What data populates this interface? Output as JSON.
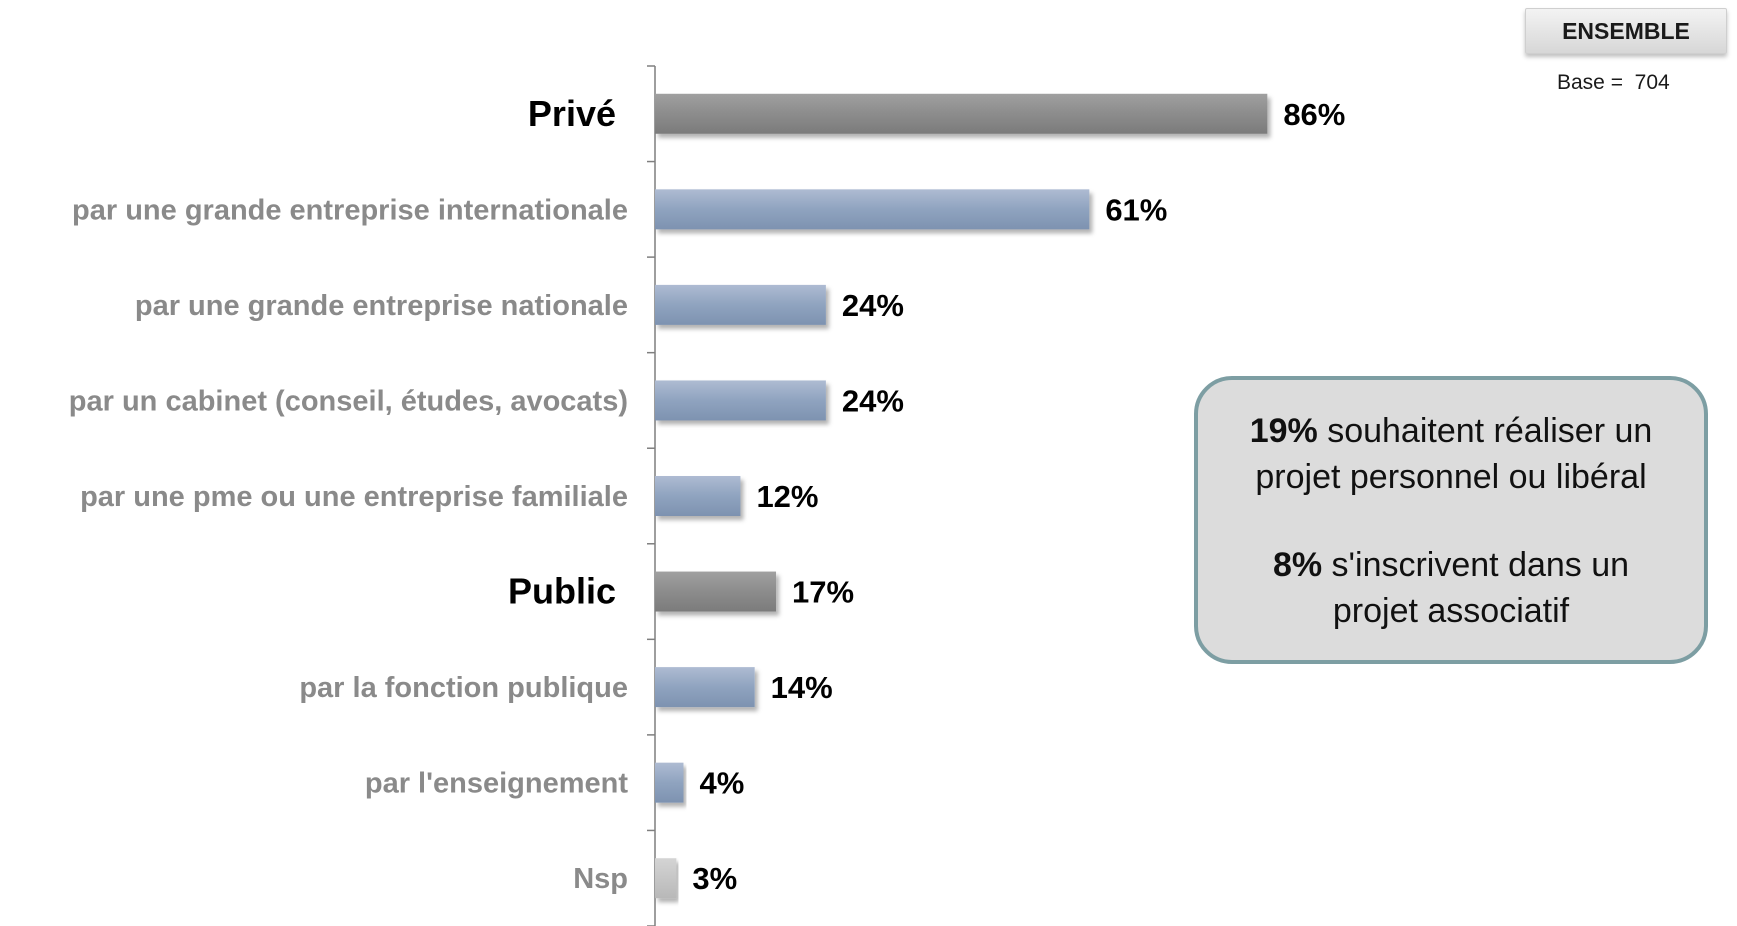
{
  "ensemble_label": "ENSEMBLE",
  "base": {
    "label": "Base =",
    "value": "704"
  },
  "callout": {
    "line1_pct": "19%",
    "line1_text": " souhaitent réaliser un",
    "line2_text": "projet personnel ou libéral",
    "line3_pct": "8%",
    "line3_text": " s'inscrivent dans un",
    "line4_text": "projet associatif"
  },
  "colors": {
    "group": "#8c8c8c",
    "sub": "#8fa3bf",
    "nsp": "#c6c6c6",
    "subLabel": "#8a8a8a",
    "groupLabel": "#000000",
    "axis": "#7f7f7f"
  },
  "chart_data": {
    "type": "bar",
    "orientation": "horizontal",
    "xlim": [
      0,
      100
    ],
    "categories": [
      "Privé",
      "par une grande entreprise internationale",
      "par une grande entreprise nationale",
      "par un cabinet (conseil, études, avocats)",
      "par une pme ou une entreprise familiale",
      "Public",
      "par la fonction publique",
      "par l'enseignement",
      "Nsp"
    ],
    "values": [
      86,
      61,
      24,
      24,
      12,
      17,
      14,
      4,
      3
    ],
    "value_labels": [
      "86%",
      "61%",
      "24%",
      "24%",
      "12%",
      "17%",
      "14%",
      "4%",
      "3%"
    ],
    "kinds": [
      "group",
      "sub",
      "sub",
      "sub",
      "sub",
      "group",
      "sub",
      "sub",
      "nsp"
    ]
  }
}
